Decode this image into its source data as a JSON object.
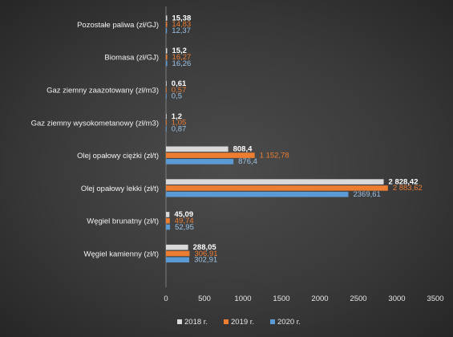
{
  "chart_data": {
    "type": "bar",
    "orientation": "horizontal",
    "categories": [
      "Pozostałe paliwa (zł/GJ)",
      "Biomasa (zł/GJ)",
      "Gaz ziemny zaazotowany (zł/m3)",
      "Gaz ziemny wysokometanowy (zł/m3)",
      "Olej opałowy ciężki (zł/t)",
      "Olej opałowy lekki (zł/t)",
      "Węgiel brunatny (zł/t)",
      "Węgiel kamienny (zł/t)"
    ],
    "series": [
      {
        "name": "2018 r.",
        "color": "#d9d9d9",
        "label_color": "#ffffff",
        "values": [
          15.38,
          15.2,
          0.61,
          1.2,
          808.4,
          2828.42,
          45.09,
          288.05
        ],
        "labels": [
          "15,38",
          "15,2",
          "0,61",
          "1,2",
          "808,4",
          "2 828,42",
          "45,09",
          "288,05"
        ]
      },
      {
        "name": "2019 r.",
        "color": "#ed7d31",
        "label_color": "#ed7d31",
        "values": [
          14.83,
          16.27,
          0.57,
          1.05,
          1152.78,
          2883.62,
          49.74,
          306.91
        ],
        "labels": [
          "14,83",
          "16,27",
          "0,57",
          "1,05",
          "1 152,78",
          "2 883,62",
          "49,74",
          "306,91"
        ]
      },
      {
        "name": "2020 r.",
        "color": "#5b9bd5",
        "label_color": "#9dc3e6",
        "values": [
          12.37,
          16.26,
          0.5,
          0.87,
          876.4,
          2369.61,
          52.95,
          302.91
        ],
        "labels": [
          "12,37",
          "16,26",
          "0,5",
          "0,87",
          "876,4",
          "2369,61",
          "52,95",
          "302,91"
        ]
      }
    ],
    "xlim": [
      0,
      3500
    ],
    "xticks": [
      "0",
      "500",
      "1000",
      "1500",
      "2000",
      "2500",
      "3000",
      "3500"
    ],
    "legend_position": "bottom",
    "grid": false
  }
}
